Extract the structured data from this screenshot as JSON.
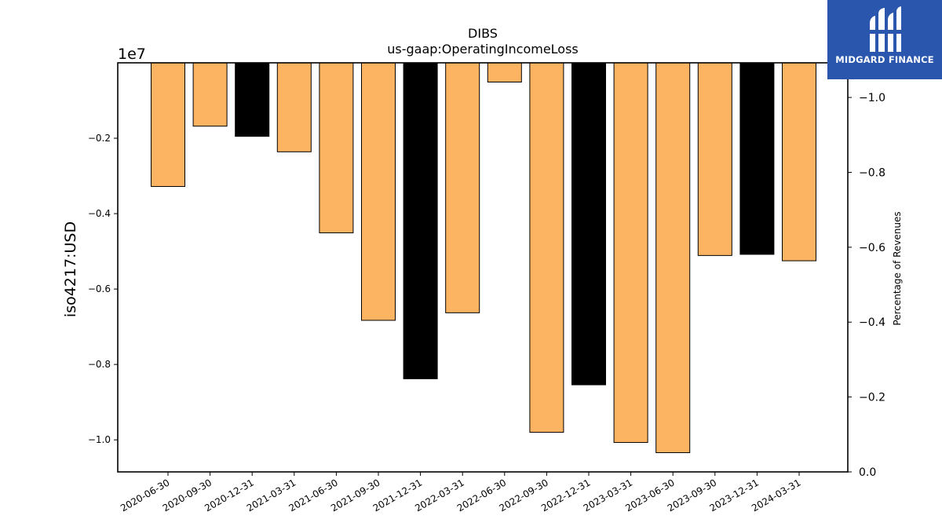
{
  "chart_data": {
    "type": "bar",
    "title": "DIBS",
    "subtitle": "us-gaap:OperatingIncomeLoss",
    "ylabel": "iso4217:USD",
    "y_offset_label": "1e7",
    "y2label": "Percentage of Revenues",
    "categories": [
      "2020-06-30",
      "2020-09-30",
      "2020-12-31",
      "2021-03-31",
      "2021-06-30",
      "2021-09-30",
      "2021-12-31",
      "2022-03-31",
      "2022-06-30",
      "2022-09-30",
      "2022-12-31",
      "2023-03-31",
      "2023-06-30",
      "2023-09-30",
      "2023-12-31",
      "2024-03-31"
    ],
    "values": [
      -3280000,
      -1680000,
      -1950000,
      -2360000,
      -4510000,
      -6830000,
      -8380000,
      -6630000,
      -510000,
      -9800000,
      -8540000,
      -10070000,
      -10340000,
      -5110000,
      -5080000,
      -5250000
    ],
    "bar_colors": [
      "#fdb462",
      "#fdb462",
      "#000000",
      "#fdb462",
      "#fdb462",
      "#fdb462",
      "#000000",
      "#fdb462",
      "#fdb462",
      "#fdb462",
      "#000000",
      "#fdb462",
      "#fdb462",
      "#fdb462",
      "#000000",
      "#fdb462"
    ],
    "ylim": [
      -10850000,
      0
    ],
    "yticks": [
      -2000000,
      -4000000,
      -6000000,
      -8000000,
      -10000000
    ],
    "ytick_labels": [
      "−0.2",
      "−0.4",
      "−0.6",
      "−0.8",
      "−1.0"
    ],
    "y2lim": [
      0,
      -1.0925
    ],
    "y2ticks": [
      0,
      -0.2,
      -0.4,
      -0.6,
      -0.8,
      -1.0
    ],
    "y2tick_labels": [
      "0.0",
      "−0.2",
      "−0.4",
      "−0.6",
      "−0.8",
      "−1.0"
    ],
    "grid": false,
    "legend": "none"
  },
  "logo": {
    "text": "MIDGARD FINANCE",
    "icon": "midgard-logo-icon",
    "color": "#2a56ad"
  }
}
